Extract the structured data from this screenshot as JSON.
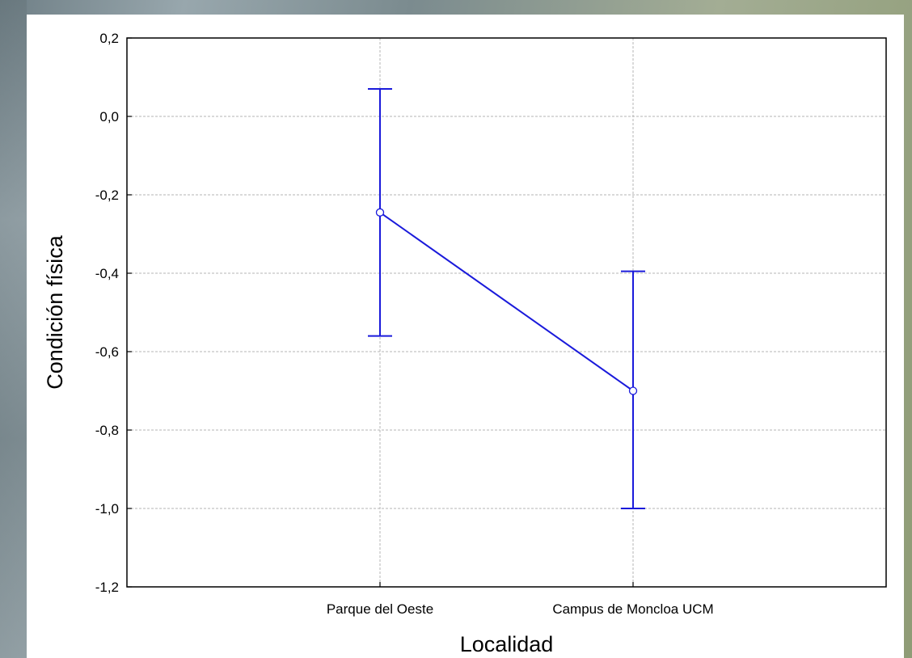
{
  "chart_data": {
    "type": "line",
    "title": "",
    "xlabel": "Localidad",
    "ylabel": "Condición física",
    "categories": [
      "Parque del Oeste",
      "Campus de Moncloa UCM"
    ],
    "series": [
      {
        "values": [
          -0.245,
          -0.7
        ],
        "error_lower": [
          -0.56,
          -1.0
        ],
        "error_upper": [
          0.07,
          -0.395
        ],
        "color": "#1a1adb"
      }
    ],
    "ylim": [
      -1.2,
      0.2
    ],
    "yticks": [
      0.2,
      0.0,
      -0.2,
      -0.4,
      -0.6,
      -0.8,
      -1.0,
      -1.2
    ],
    "ytick_labels": [
      "0,2",
      "0,0",
      "-0,2",
      "-0,4",
      "-0,6",
      "-0,8",
      "-1,0",
      "-1,2"
    ],
    "grid": true,
    "legend": "none"
  }
}
